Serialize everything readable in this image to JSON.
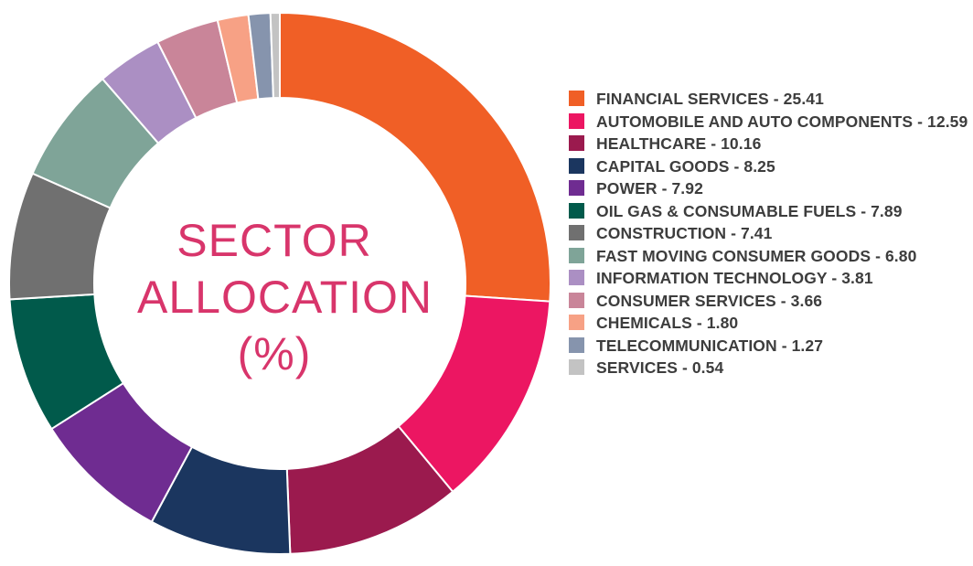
{
  "center_title": {
    "line1": "SECTOR",
    "line2": "ALLOCATION",
    "line3": "(%)"
  },
  "chart_data": {
    "type": "pie",
    "donut": true,
    "title": "SECTOR ALLOCATION (%)",
    "legend_position": "right",
    "slices": [
      {
        "label": "FINANCIAL SERVICES - 25.41",
        "name": "FINANCIAL SERVICES",
        "value": 25.41,
        "color": "#f05f26"
      },
      {
        "label": "AUTOMOBILE AND AUTO COMPONENTS - 12.59",
        "name": "AUTOMOBILE AND AUTO COMPONENTS",
        "value": 12.59,
        "color": "#ec1662"
      },
      {
        "label": "HEALTHCARE - 10.16",
        "name": "HEALTHCARE",
        "value": 10.16,
        "color": "#9b1a4e"
      },
      {
        "label": "CAPITAL GOODS - 8.25",
        "name": "CAPITAL GOODS",
        "value": 8.25,
        "color": "#1b365f"
      },
      {
        "label": "POWER - 7.92",
        "name": "POWER",
        "value": 7.92,
        "color": "#6f2c91"
      },
      {
        "label": "OIL GAS & CONSUMABLE FUELS - 7.89",
        "name": "OIL GAS & CONSUMABLE FUELS",
        "value": 7.89,
        "color": "#015a4b"
      },
      {
        "label": "CONSTRUCTION - 7.41",
        "name": "CONSTRUCTION",
        "value": 7.41,
        "color": "#707070"
      },
      {
        "label": "FAST MOVING CONSUMER GOODS - 6.80",
        "name": "FAST MOVING CONSUMER GOODS",
        "value": 6.8,
        "color": "#7fa498"
      },
      {
        "label": "INFORMATION TECHNOLOGY - 3.81",
        "name": "INFORMATION TECHNOLOGY",
        "value": 3.81,
        "color": "#ab8fc3"
      },
      {
        "label": "CONSUMER SERVICES - 3.66",
        "name": "CONSUMER SERVICES",
        "value": 3.66,
        "color": "#c98599"
      },
      {
        "label": "CHEMICALS - 1.80",
        "name": "CHEMICALS",
        "value": 1.8,
        "color": "#f7a185"
      },
      {
        "label": "TELECOMMUNICATION - 1.27",
        "name": "TELECOMMUNICATION",
        "value": 1.27,
        "color": "#8694ad"
      },
      {
        "label": "SERVICES - 0.54",
        "name": "SERVICES",
        "value": 0.54,
        "color": "#c3c3c3"
      }
    ]
  }
}
